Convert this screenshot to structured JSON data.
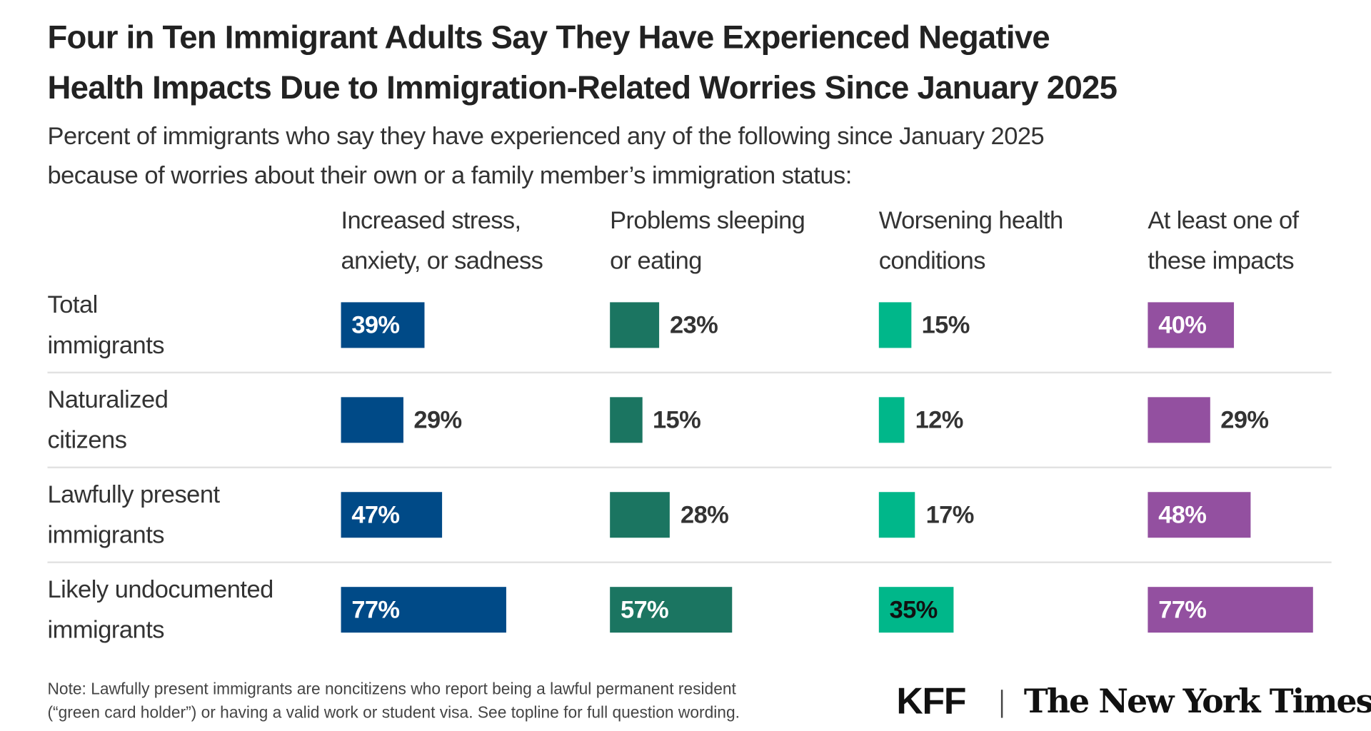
{
  "chart_data": {
    "type": "bar",
    "title": "Four in Ten Immigrant Adults Say They Have Experienced Negative\nHealth Impacts Due to Immigration-Related Worries Since January 2025",
    "title_lines": [
      "Four in Ten Immigrant Adults Say They Have Experienced Negative",
      "Health Impacts Due to Immigration-Related Worries Since January 2025"
    ],
    "subtitle_lines": [
      "Percent of immigrants who say they have experienced any of the following since January 2025",
      "because of worries about their own or a family member’s immigration status:"
    ],
    "categories": [
      {
        "lines": [
          "Total",
          "immigrants"
        ]
      },
      {
        "lines": [
          "Naturalized",
          "citizens"
        ]
      },
      {
        "lines": [
          "Lawfully present",
          "immigrants"
        ]
      },
      {
        "lines": [
          "Likely undocumented",
          "immigrants"
        ]
      }
    ],
    "series": [
      {
        "name": "Increased stress, anxiety, or sadness",
        "lines": [
          "Increased stress,",
          "anxiety, or sadness"
        ],
        "color": "#004a87",
        "label_color": "#ffffff",
        "values": [
          39,
          29,
          47,
          77
        ]
      },
      {
        "name": "Problems sleeping or eating",
        "lines": [
          "Problems sleeping",
          "or eating"
        ],
        "color": "#1b7561",
        "label_color": "#ffffff",
        "values": [
          23,
          15,
          28,
          57
        ]
      },
      {
        "name": "Worsening health conditions",
        "lines": [
          "Worsening health",
          "conditions"
        ],
        "color": "#00b78a",
        "label_color": "#111111",
        "values": [
          15,
          12,
          17,
          35
        ]
      },
      {
        "name": "At least one of these impacts",
        "lines": [
          "At least one of",
          "these impacts"
        ],
        "color": "#9350a0",
        "label_color": "#ffffff",
        "values": [
          40,
          29,
          48,
          77
        ]
      }
    ],
    "value_suffix": "%",
    "orientation": "horizontal",
    "layout": "small-multiples",
    "grid": false,
    "note_lines": [
      "Note: Lawfully present immigrants are noncitizens who report being a lawful permanent resident",
      "(“green card holder”) or having a valid work or student visa. See topline for full question wording."
    ]
  },
  "logos": {
    "kff": "KFF",
    "nyt": "The New York Times"
  }
}
